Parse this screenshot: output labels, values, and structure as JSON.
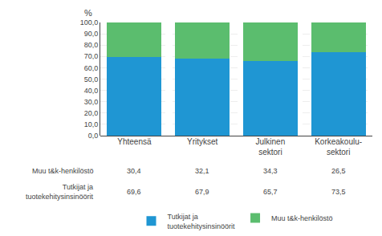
{
  "chart_data": {
    "type": "bar",
    "stacked": true,
    "ylabel": "%",
    "categories": [
      "Yhteensä",
      "Yritykset",
      "Julkinen\nsektori",
      "Korkeakoulu-\nsektori"
    ],
    "series": [
      {
        "name": "Tutkijat ja\ntuotekehitysinsinöörit",
        "color": "#1F96D3",
        "values": [
          69.6,
          67.9,
          65.7,
          73.5
        ],
        "value_labels": [
          "69,6",
          "67,9",
          "65,7",
          "73,5"
        ]
      },
      {
        "name": "Muu t&k-henkilöstö",
        "color": "#5BBD6E",
        "values": [
          30.4,
          32.1,
          34.3,
          26.5
        ],
        "value_labels": [
          "30,4",
          "32,1",
          "34,3",
          "26,5"
        ]
      }
    ],
    "ylim": [
      0,
      100
    ],
    "yticks": [
      {
        "value": 0,
        "label": "0,0"
      },
      {
        "value": 10,
        "label": "10,0"
      },
      {
        "value": 20,
        "label": "20,0"
      },
      {
        "value": 30,
        "label": "30,0"
      },
      {
        "value": 40,
        "label": "40,0"
      },
      {
        "value": 50,
        "label": "50,0"
      },
      {
        "value": 60,
        "label": "60,0"
      },
      {
        "value": 70,
        "label": "70,0"
      },
      {
        "value": 80,
        "label": "80,0"
      },
      {
        "value": 90,
        "label": "90,0"
      },
      {
        "value": 100,
        "label": "100,0"
      }
    ],
    "grid": true,
    "legend": "bottom"
  }
}
